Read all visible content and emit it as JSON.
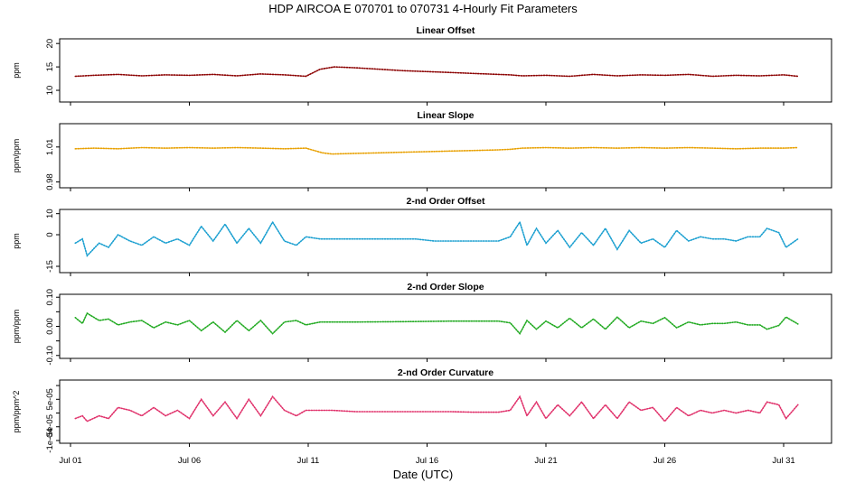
{
  "title": "HDP   AIRCOA E   070701 to 070731   4-Hourly Fit Parameters",
  "xlabel": "Date (UTC)",
  "x_ticks": [
    "Jul 01",
    "Jul 06",
    "Jul 11",
    "Jul 16",
    "Jul 21",
    "Jul 26",
    "Jul 31"
  ],
  "chart_data": [
    {
      "type": "line",
      "title": "Linear Offset",
      "ylabel": "ppm",
      "ylim": [
        7.5,
        21
      ],
      "y_ticks": [
        10,
        15,
        20
      ],
      "y_tick_labels": [
        "10",
        "15",
        "20"
      ],
      "color": "#8b0000",
      "points": [
        [
          0.2,
          13
        ],
        [
          1,
          13.2
        ],
        [
          2,
          13.4
        ],
        [
          3,
          13.1
        ],
        [
          4,
          13.3
        ],
        [
          5,
          13.2
        ],
        [
          6,
          13.4
        ],
        [
          7,
          13.1
        ],
        [
          8,
          13.5
        ],
        [
          9,
          13.3
        ],
        [
          9.9,
          13
        ],
        [
          10.5,
          14.5
        ],
        [
          11.1,
          15
        ],
        [
          12,
          14.8
        ],
        [
          13,
          14.5
        ],
        [
          14,
          14.2
        ],
        [
          15,
          14
        ],
        [
          16,
          13.8
        ],
        [
          17,
          13.6
        ],
        [
          18,
          13.4
        ],
        [
          18.5,
          13.3
        ],
        [
          19,
          13.1
        ],
        [
          20,
          13.2
        ],
        [
          21,
          13
        ],
        [
          22,
          13.4
        ],
        [
          23,
          13.1
        ],
        [
          24,
          13.3
        ],
        [
          25,
          13.2
        ],
        [
          26,
          13.4
        ],
        [
          27,
          13
        ],
        [
          28,
          13.2
        ],
        [
          29,
          13.1
        ],
        [
          30,
          13.3
        ],
        [
          30.6,
          13
        ]
      ]
    },
    {
      "type": "line",
      "title": "Linear Slope",
      "ylabel": "ppm/ppm",
      "ylim": [
        0.975,
        1.03
      ],
      "y_ticks": [
        0.98,
        1.01
      ],
      "y_tick_labels": [
        "0.98",
        "1.01"
      ],
      "color": "#e8a000",
      "points": [
        [
          0.2,
          1.0085
        ],
        [
          1,
          1.009
        ],
        [
          2,
          1.0085
        ],
        [
          3,
          1.0095
        ],
        [
          4,
          1.009
        ],
        [
          5,
          1.0095
        ],
        [
          6,
          1.009
        ],
        [
          7,
          1.0095
        ],
        [
          8,
          1.009
        ],
        [
          9,
          1.0085
        ],
        [
          9.9,
          1.009
        ],
        [
          10.6,
          1.005
        ],
        [
          11,
          1.004
        ],
        [
          12,
          1.0045
        ],
        [
          13,
          1.005
        ],
        [
          14,
          1.0055
        ],
        [
          15,
          1.006
        ],
        [
          16,
          1.0065
        ],
        [
          17,
          1.007
        ],
        [
          18,
          1.0075
        ],
        [
          18.5,
          1.008
        ],
        [
          19,
          1.009
        ],
        [
          20,
          1.0095
        ],
        [
          21,
          1.009
        ],
        [
          22,
          1.0095
        ],
        [
          23,
          1.009
        ],
        [
          24,
          1.0095
        ],
        [
          25,
          1.009
        ],
        [
          26,
          1.0095
        ],
        [
          27,
          1.009
        ],
        [
          28,
          1.0085
        ],
        [
          29,
          1.009
        ],
        [
          30,
          1.009
        ],
        [
          30.6,
          1.0095
        ]
      ]
    },
    {
      "type": "line",
      "title": "2-nd Order Offset",
      "ylabel": "ppm",
      "ylim": [
        -18,
        12
      ],
      "y_ticks": [
        10,
        0,
        -15
      ],
      "y_tick_labels": [
        "10",
        "0",
        "-15"
      ],
      "color": "#1a9fd0",
      "points": [
        [
          0.2,
          -4
        ],
        [
          0.5,
          -2
        ],
        [
          0.7,
          -10
        ],
        [
          1.2,
          -4
        ],
        [
          1.6,
          -6
        ],
        [
          2,
          0
        ],
        [
          2.5,
          -3
        ],
        [
          3,
          -5
        ],
        [
          3.5,
          -1
        ],
        [
          4,
          -4
        ],
        [
          4.5,
          -2
        ],
        [
          5,
          -5
        ],
        [
          5.5,
          4
        ],
        [
          6,
          -3
        ],
        [
          6.5,
          5
        ],
        [
          7,
          -4
        ],
        [
          7.5,
          3
        ],
        [
          8,
          -4
        ],
        [
          8.5,
          6
        ],
        [
          9,
          -3
        ],
        [
          9.5,
          -5
        ],
        [
          9.9,
          -1
        ],
        [
          10.5,
          -2
        ],
        [
          11,
          -2
        ],
        [
          12,
          -2
        ],
        [
          13,
          -2
        ],
        [
          14,
          -2
        ],
        [
          14.5,
          -2
        ],
        [
          15.3,
          -3
        ],
        [
          16,
          -3
        ],
        [
          17,
          -3
        ],
        [
          18,
          -3
        ],
        [
          18.5,
          -1
        ],
        [
          18.9,
          6
        ],
        [
          19.2,
          -5
        ],
        [
          19.6,
          3
        ],
        [
          20,
          -4
        ],
        [
          20.5,
          2
        ],
        [
          21,
          -6
        ],
        [
          21.5,
          1
        ],
        [
          22,
          -5
        ],
        [
          22.5,
          3
        ],
        [
          23,
          -7
        ],
        [
          23.5,
          2
        ],
        [
          24,
          -4
        ],
        [
          24.5,
          -2
        ],
        [
          25,
          -6
        ],
        [
          25.5,
          2
        ],
        [
          26,
          -3
        ],
        [
          26.5,
          -1
        ],
        [
          27,
          -2
        ],
        [
          27.5,
          -2
        ],
        [
          28,
          -3
        ],
        [
          28.5,
          -1
        ],
        [
          29,
          -1
        ],
        [
          29.3,
          3
        ],
        [
          29.8,
          1
        ],
        [
          30.1,
          -6
        ],
        [
          30.6,
          -2
        ]
      ]
    },
    {
      "type": "line",
      "title": "2-nd Order Slope",
      "ylabel": "ppm/ppm",
      "ylim": [
        -0.11,
        0.11
      ],
      "y_ticks": [
        0.1,
        0.05,
        0.0,
        -0.05,
        -0.1
      ],
      "y_tick_labels": [
        "0.10",
        "",
        "0.00",
        "",
        "-0.10"
      ],
      "color": "#22aa22",
      "points": [
        [
          0.2,
          0.03
        ],
        [
          0.5,
          0.01
        ],
        [
          0.7,
          0.045
        ],
        [
          1.2,
          0.02
        ],
        [
          1.6,
          0.025
        ],
        [
          2,
          0.005
        ],
        [
          2.5,
          0.015
        ],
        [
          3,
          0.02
        ],
        [
          3.5,
          -0.005
        ],
        [
          4,
          0.015
        ],
        [
          4.5,
          0.005
        ],
        [
          5,
          0.02
        ],
        [
          5.5,
          -0.015
        ],
        [
          6,
          0.015
        ],
        [
          6.5,
          -0.02
        ],
        [
          7,
          0.02
        ],
        [
          7.5,
          -0.015
        ],
        [
          8,
          0.02
        ],
        [
          8.5,
          -0.025
        ],
        [
          9,
          0.015
        ],
        [
          9.5,
          0.02
        ],
        [
          9.9,
          0.005
        ],
        [
          10.5,
          0.015
        ],
        [
          12,
          0.015
        ],
        [
          14,
          0.016
        ],
        [
          16,
          0.018
        ],
        [
          18,
          0.018
        ],
        [
          18.5,
          0.012
        ],
        [
          18.9,
          -0.025
        ],
        [
          19.2,
          0.02
        ],
        [
          19.6,
          -0.01
        ],
        [
          20,
          0.018
        ],
        [
          20.5,
          -0.005
        ],
        [
          21,
          0.028
        ],
        [
          21.5,
          -0.005
        ],
        [
          22,
          0.025
        ],
        [
          22.5,
          -0.01
        ],
        [
          23,
          0.032
        ],
        [
          23.5,
          -0.005
        ],
        [
          24,
          0.018
        ],
        [
          24.5,
          0.01
        ],
        [
          25,
          0.03
        ],
        [
          25.5,
          -0.005
        ],
        [
          26,
          0.015
        ],
        [
          26.5,
          0.005
        ],
        [
          27,
          0.01
        ],
        [
          27.5,
          0.01
        ],
        [
          28,
          0.015
        ],
        [
          28.5,
          0.005
        ],
        [
          29,
          0.005
        ],
        [
          29.3,
          -0.01
        ],
        [
          29.8,
          0.003
        ],
        [
          30.1,
          0.032
        ],
        [
          30.6,
          0.008
        ]
      ]
    },
    {
      "type": "line",
      "title": "2-nd Order Curvature",
      "ylabel": "ppm/ppm^2",
      "ylim": [
        -0.00011,
        0.00012
      ],
      "y_ticks": [
        0.0001,
        5e-05,
        0,
        -5e-05,
        -0.0001
      ],
      "y_tick_labels": [
        "",
        "5e-05",
        "",
        "-5e-05",
        "-1e-04"
      ],
      "color": "#e0306a",
      "points": [
        [
          0.2,
          -2e-05
        ],
        [
          0.5,
          -1e-05
        ],
        [
          0.7,
          -3e-05
        ],
        [
          1.2,
          -1e-05
        ],
        [
          1.6,
          -2e-05
        ],
        [
          2,
          2e-05
        ],
        [
          2.5,
          1e-05
        ],
        [
          3,
          -1e-05
        ],
        [
          3.5,
          2e-05
        ],
        [
          4,
          -1e-05
        ],
        [
          4.5,
          1e-05
        ],
        [
          5,
          -2e-05
        ],
        [
          5.5,
          5e-05
        ],
        [
          6,
          -1e-05
        ],
        [
          6.5,
          4e-05
        ],
        [
          7,
          -2e-05
        ],
        [
          7.5,
          5e-05
        ],
        [
          8,
          -1e-05
        ],
        [
          8.5,
          6e-05
        ],
        [
          9,
          1e-05
        ],
        [
          9.5,
          -1e-05
        ],
        [
          9.9,
          1e-05
        ],
        [
          10.5,
          1e-05
        ],
        [
          11,
          1e-05
        ],
        [
          12,
          5e-06
        ],
        [
          13,
          5e-06
        ],
        [
          14,
          5e-06
        ],
        [
          15,
          5e-06
        ],
        [
          16,
          5e-06
        ],
        [
          17,
          3e-06
        ],
        [
          18,
          3e-06
        ],
        [
          18.5,
          1e-05
        ],
        [
          18.9,
          6e-05
        ],
        [
          19.2,
          -1e-05
        ],
        [
          19.6,
          4e-05
        ],
        [
          20,
          -2e-05
        ],
        [
          20.5,
          3e-05
        ],
        [
          21,
          -1e-05
        ],
        [
          21.5,
          4e-05
        ],
        [
          22,
          -2e-05
        ],
        [
          22.5,
          3e-05
        ],
        [
          23,
          -2e-05
        ],
        [
          23.5,
          4e-05
        ],
        [
          24,
          1e-05
        ],
        [
          24.5,
          2e-05
        ],
        [
          25,
          -3e-05
        ],
        [
          25.5,
          2e-05
        ],
        [
          26,
          -1e-05
        ],
        [
          26.5,
          1e-05
        ],
        [
          27,
          0
        ],
        [
          27.5,
          1e-05
        ],
        [
          28,
          0
        ],
        [
          28.5,
          1e-05
        ],
        [
          29,
          0
        ],
        [
          29.3,
          4e-05
        ],
        [
          29.8,
          3e-05
        ],
        [
          30.1,
          -2e-05
        ],
        [
          30.6,
          3e-05
        ]
      ]
    }
  ]
}
